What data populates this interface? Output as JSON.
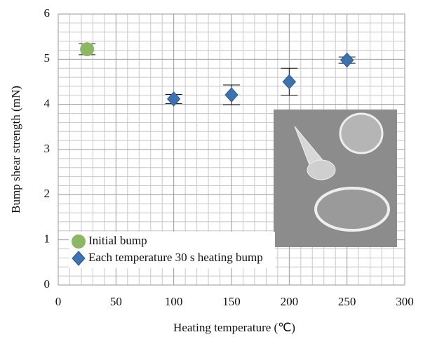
{
  "chart_data": {
    "type": "scatter",
    "x_label": "Heating temperature (℃)",
    "y_label": "Bump shear strength (mN)",
    "series": [
      {
        "name": "Initial bump",
        "color": "#8db863",
        "marker": "circle",
        "x": [
          25
        ],
        "values": [
          5.22
        ],
        "errors": [
          0.12
        ]
      },
      {
        "name": "Each temperature 30 s heating bump",
        "color": "#3d72b0",
        "marker": "diamond",
        "x": [
          100,
          150,
          200,
          250
        ],
        "values": [
          4.12,
          4.21,
          4.5,
          4.98
        ],
        "errors": [
          0.1,
          0.22,
          0.3,
          0.07
        ]
      }
    ],
    "xlim": [
      0,
      300
    ],
    "xticks": [
      0,
      50,
      100,
      150,
      200,
      250,
      300
    ],
    "ylim": [
      0,
      6
    ],
    "yticks": [
      0,
      1,
      2,
      3,
      4,
      5,
      6
    ],
    "grid": true,
    "minor_divisions": 5,
    "legend": "lower left"
  }
}
